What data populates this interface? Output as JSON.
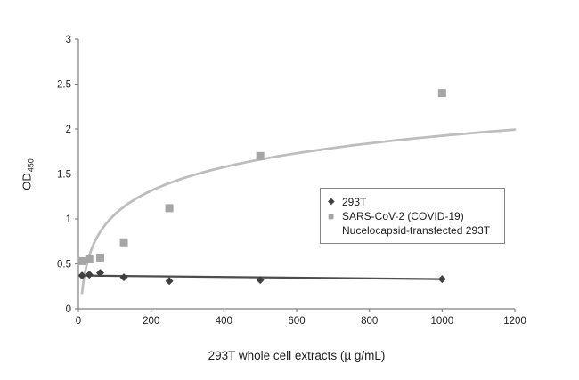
{
  "chart_data": {
    "type": "scatter",
    "title": "",
    "xlabel": "293T whole cell extracts (µ g/mL)",
    "ylabel": "OD",
    "ylabel_subscript": "450",
    "xlim": [
      0,
      1200
    ],
    "ylim": [
      0,
      3
    ],
    "xticks": [
      0,
      200,
      400,
      600,
      800,
      1000,
      1200
    ],
    "yticks": [
      0,
      0.5,
      1,
      1.5,
      2,
      2.5,
      3
    ],
    "grid": false,
    "legend_position": "middle-right",
    "axis_color": "#808080",
    "tick_text_color": "#1f1f1f",
    "series": [
      {
        "name": "293T",
        "marker": "diamond",
        "color": "#404040",
        "trend_color": "#4d4d4d",
        "legend_lines": [
          "293T"
        ],
        "points": [
          [
            10,
            0.37
          ],
          [
            30,
            0.38
          ],
          [
            60,
            0.4
          ],
          [
            125,
            0.35
          ],
          [
            250,
            0.31
          ],
          [
            500,
            0.32
          ],
          [
            1000,
            0.33
          ]
        ],
        "trend": {
          "type": "linear",
          "x_start": 10,
          "y_start": 0.37,
          "x_end": 1000,
          "y_end": 0.33
        }
      },
      {
        "name": "SARS-CoV-2 (COVID-19) Nucelocapsid-transfected 293T",
        "marker": "square",
        "color": "#a6a6a6",
        "trend_color": "#bdbdbd",
        "legend_lines": [
          "SARS-CoV-2 (COVID-19)",
          "Nucelocapsid-transfected 293T"
        ],
        "points": [
          [
            10,
            0.53
          ],
          [
            30,
            0.55
          ],
          [
            60,
            0.57
          ],
          [
            125,
            0.74
          ],
          [
            250,
            1.12
          ],
          [
            500,
            1.7
          ],
          [
            1000,
            2.4
          ]
        ],
        "trend": {
          "type": "log",
          "a": 0.38,
          "b": -0.7,
          "x_start": 10,
          "x_end": 1200
        }
      }
    ]
  }
}
